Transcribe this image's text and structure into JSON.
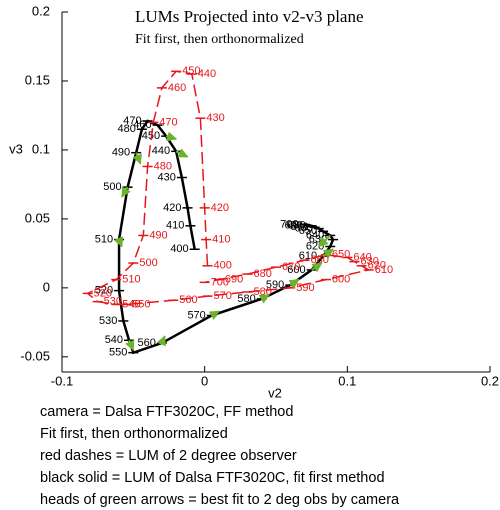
{
  "chart_data": {
    "type": "line",
    "title": "LUMs Projected into v2-v3 plane",
    "subtitle": "Fit first, then orthonormalized",
    "x_label": "v2",
    "y_label": "v3",
    "xlim": [
      -0.1,
      0.2
    ],
    "ylim": [
      -0.061,
      0.2
    ],
    "xticks": [
      -0.1,
      0,
      0.1,
      0.2
    ],
    "yticks": [
      -0.05,
      0,
      0.05,
      0.1,
      0.15,
      0.2
    ],
    "series": [
      {
        "color": "#000000",
        "dash": "solid",
        "labels": [
          400,
          410,
          420,
          430,
          440,
          450,
          460,
          470,
          480,
          490,
          500,
          510,
          520,
          530,
          540,
          550,
          560,
          570,
          580,
          590,
          600,
          610,
          620,
          630,
          640,
          650,
          660,
          670,
          680,
          690,
          700
        ],
        "x": [
          -0.007,
          -0.01,
          -0.012,
          -0.016,
          -0.02,
          -0.027,
          -0.033,
          -0.04,
          -0.044,
          -0.048,
          -0.054,
          -0.06,
          -0.06,
          -0.057,
          -0.053,
          -0.05,
          -0.03,
          0.005,
          0.04,
          0.06,
          0.075,
          0.083,
          0.088,
          0.09,
          0.088,
          0.083,
          0.08,
          0.077,
          0.075,
          0.073,
          0.07
        ],
        "values": [
          0.028,
          0.045,
          0.058,
          0.08,
          0.099,
          0.11,
          0.118,
          0.121,
          0.115,
          0.098,
          0.073,
          0.035,
          -0.002,
          -0.024,
          -0.038,
          -0.047,
          -0.04,
          -0.02,
          -0.008,
          0.002,
          0.013,
          0.023,
          0.03,
          0.035,
          0.038,
          0.041,
          0.043,
          0.044,
          0.045,
          0.045,
          0.046
        ]
      },
      {
        "color": "#e8161b",
        "dash": "dashed",
        "labels": [
          400,
          410,
          420,
          430,
          440,
          450,
          460,
          470,
          480,
          490,
          500,
          510,
          520,
          530,
          540,
          550,
          560,
          570,
          580,
          590,
          600,
          610,
          620,
          630,
          640,
          650,
          660,
          670,
          680,
          690,
          700
        ],
        "x": [
          0.002,
          0.001,
          0.0,
          -0.003,
          -0.009,
          -0.02,
          -0.03,
          -0.036,
          -0.04,
          -0.043,
          -0.05,
          -0.062,
          -0.082,
          -0.075,
          -0.062,
          -0.055,
          -0.022,
          0.002,
          0.03,
          0.06,
          0.085,
          0.115,
          0.11,
          0.105,
          0.1,
          0.085,
          0.07,
          0.05,
          0.03,
          0.01,
          0.0
        ],
        "values": [
          0.016,
          0.035,
          0.058,
          0.123,
          0.155,
          0.157,
          0.145,
          0.12,
          0.088,
          0.038,
          0.018,
          0.006,
          -0.004,
          -0.01,
          -0.012,
          -0.012,
          -0.009,
          -0.006,
          -0.003,
          0.0,
          0.006,
          0.013,
          0.016,
          0.019,
          0.022,
          0.024,
          0.02,
          0.015,
          0.01,
          0.006,
          0.004
        ]
      }
    ],
    "arrows": {
      "color": "#6ab42d",
      "x_start": [
        -0.048,
        -0.054,
        -0.06,
        -0.053,
        -0.03,
        0.005,
        0.04,
        0.06,
        0.075,
        0.083,
        -0.027,
        -0.02,
        0.088
      ],
      "y_start": [
        0.098,
        0.073,
        0.035,
        -0.038,
        -0.04,
        -0.02,
        -0.008,
        0.002,
        0.013,
        0.023,
        0.11,
        0.099,
        0.038
      ],
      "x": [
        -0.045,
        -0.058,
        -0.058,
        -0.05,
        -0.028,
        0.01,
        0.045,
        0.066,
        0.082,
        0.09,
        -0.02,
        -0.012,
        0.08
      ],
      "values": [
        0.09,
        0.066,
        0.03,
        -0.045,
        -0.035,
        -0.017,
        -0.005,
        0.006,
        0.018,
        0.028,
        0.108,
        0.095,
        0.03
      ]
    },
    "notes": [
      "camera = Dalsa FTF3020C, FF method",
      "Fit first, then orthonormalized",
      "red dashes = LUM of 2 degree observer",
      "black solid = LUM of Dalsa FTF3020C, fit first method",
      "heads of green arrows = best fit to 2 deg obs by camera"
    ]
  }
}
